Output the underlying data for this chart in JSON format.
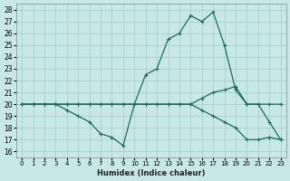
{
  "xlabel": "Humidex (Indice chaleur)",
  "ylabel": "",
  "xlim": [
    -0.5,
    23.5
  ],
  "ylim": [
    15.5,
    28.5
  ],
  "xticks": [
    0,
    1,
    2,
    3,
    4,
    5,
    6,
    7,
    8,
    9,
    10,
    11,
    12,
    13,
    14,
    15,
    16,
    17,
    18,
    19,
    20,
    21,
    22,
    23
  ],
  "yticks": [
    16,
    17,
    18,
    19,
    20,
    21,
    22,
    23,
    24,
    25,
    26,
    27,
    28
  ],
  "bg_color": "#c8e8e8",
  "line_color": "#1a6b5a",
  "grid_color": "#aad0d0",
  "line1_x": [
    0,
    1,
    2,
    3,
    4,
    5,
    6,
    7,
    8,
    9,
    10,
    11,
    12,
    13,
    14,
    15,
    16,
    17,
    18,
    19,
    20,
    21,
    22,
    23
  ],
  "line1_y": [
    20,
    20,
    20,
    20,
    19.5,
    19,
    18.5,
    17.5,
    17.2,
    16.5,
    20,
    22.5,
    23,
    25.5,
    26,
    27.5,
    27,
    27.8,
    25,
    21.2,
    20,
    20,
    18.5,
    17
  ],
  "line2_x": [
    0,
    1,
    2,
    3,
    4,
    5,
    6,
    7,
    8,
    9,
    10,
    11,
    12,
    13,
    14,
    15,
    16,
    17,
    18,
    19,
    20,
    21,
    22,
    23
  ],
  "line2_y": [
    20,
    20,
    20,
    20,
    20,
    20,
    20,
    20,
    20,
    20,
    20,
    20,
    20,
    20,
    20,
    20,
    20.5,
    21,
    21.2,
    21.5,
    20,
    20,
    20,
    20
  ],
  "line3_x": [
    0,
    1,
    2,
    3,
    4,
    5,
    6,
    7,
    8,
    9,
    10,
    11,
    12,
    13,
    14,
    15,
    16,
    17,
    18,
    19,
    20,
    21,
    22,
    23
  ],
  "line3_y": [
    20,
    20,
    20,
    20,
    20,
    20,
    20,
    20,
    20,
    20,
    20,
    20,
    20,
    20,
    20,
    20,
    19.5,
    19,
    18.5,
    18,
    17,
    17,
    17.2,
    17
  ]
}
